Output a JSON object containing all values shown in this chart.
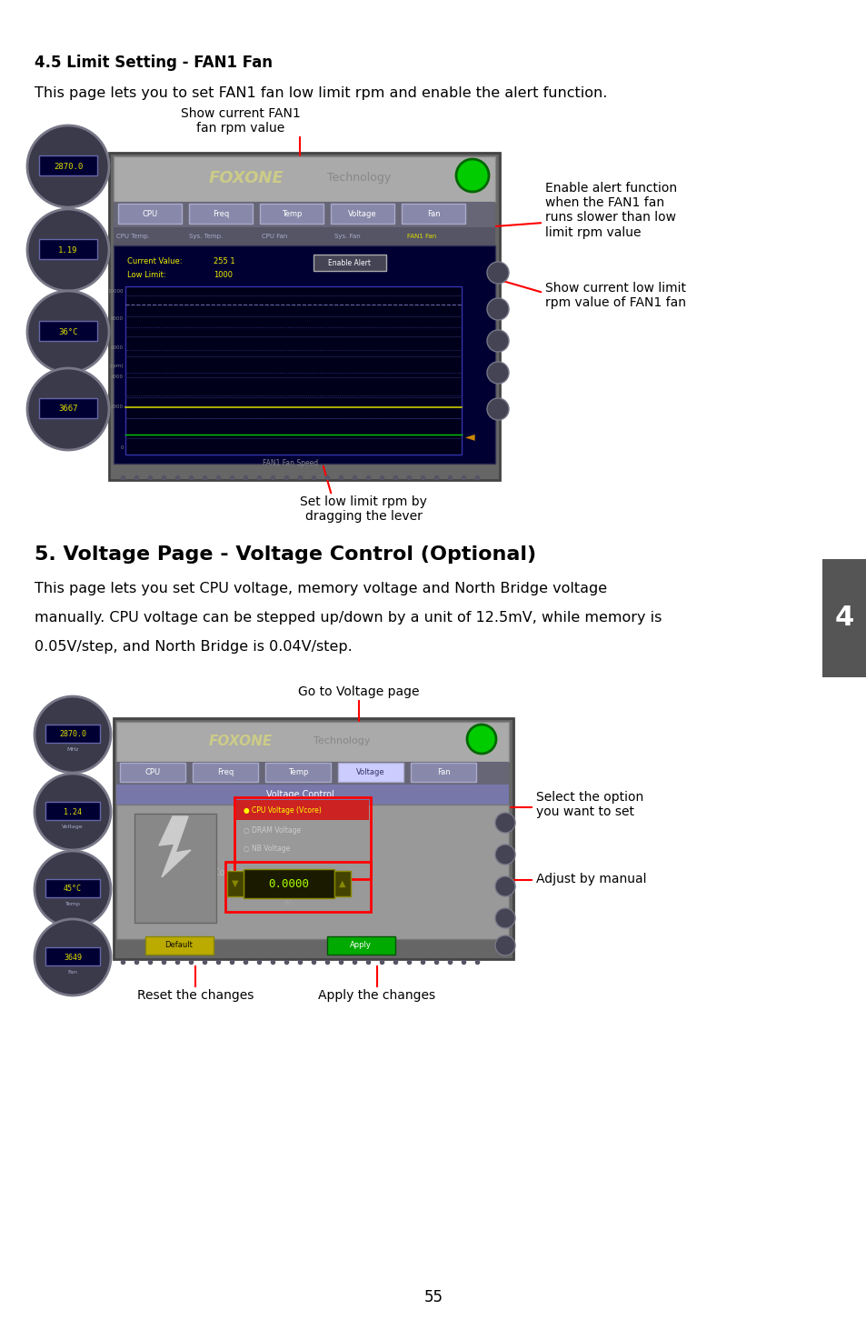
{
  "page_bg": "#ffffff",
  "section1_title": "4.5 Limit Setting - FAN1 Fan",
  "section1_body": "This page lets you to set FAN1 fan low limit rpm and enable the alert function.",
  "section2_title": "5. Voltage Page - Voltage Control (Optional)",
  "section2_body1": "This page lets you set CPU voltage, memory voltage and North Bridge voltage",
  "section2_body2": "manually. CPU voltage can be stepped up/down by a unit of 12.5mV, while memory is",
  "section2_body3": "0.05V/step, and North Bridge is 0.04V/step.",
  "page_number": "55",
  "tab_label": "4",
  "text_fontsize": 11.5,
  "title1_fontsize": 12,
  "title2_fontsize": 16,
  "annotation_fontsize": 10,
  "side_tab_color": "#555555"
}
